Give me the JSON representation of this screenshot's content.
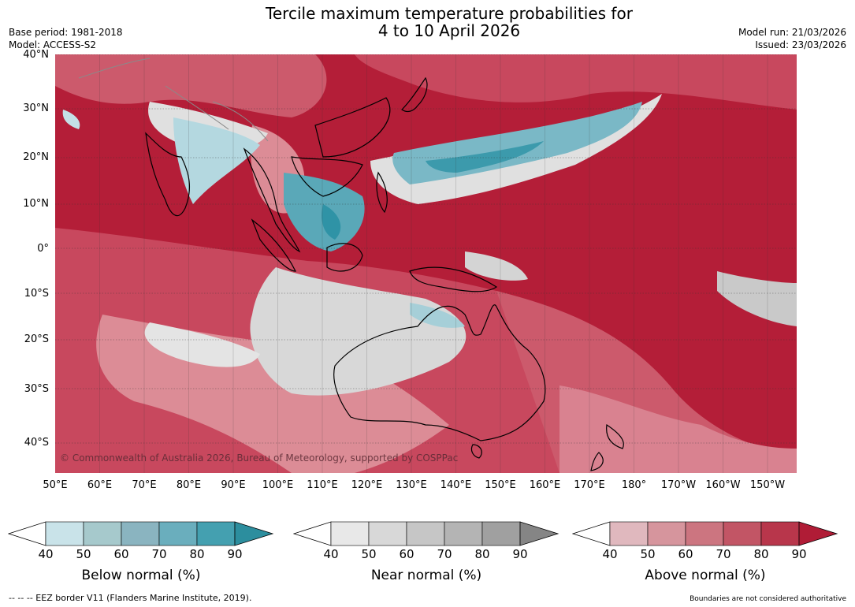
{
  "header": {
    "title_line1": "Tercile maximum temperature probabilities for",
    "title_line2": "4 to 10 April 2026",
    "base_period": "Base period: 1981-2018",
    "model": "Model: ACCESS-S2",
    "model_run": "Model run: 21/03/2026",
    "issued": "Issued: 23/03/2026"
  },
  "map": {
    "lat_labels": [
      "40°N",
      "30°N",
      "20°N",
      "10°N",
      "0°",
      "10°S",
      "20°S",
      "30°S",
      "40°S"
    ],
    "lon_labels": [
      "50°E",
      "60°E",
      "70°E",
      "80°E",
      "90°E",
      "100°E",
      "110°E",
      "120°E",
      "130°E",
      "140°E",
      "150°E",
      "160°E",
      "170°E",
      "180°",
      "170°W",
      "160°W",
      "150°W"
    ],
    "copyright": "© Commonwealth of Australia 2026, Bureau of Meteorology, supported by COSPPac",
    "colors": {
      "above_deep": "#b41e38",
      "above_mid": "#c8485e",
      "above_light": "#dc8c96",
      "near": "#d8d8d8",
      "below_light": "#c4e0e6",
      "below_mid": "#6aaebd",
      "below_deep": "#2f93a6",
      "land_outline": "#000000"
    }
  },
  "colorbars": [
    {
      "title": "Below normal (%)",
      "ticks": [
        "40",
        "50",
        "60",
        "70",
        "80",
        "90"
      ],
      "colors": [
        "#c9e3e9",
        "#a6c9cc",
        "#8ab4c0",
        "#6aaebd",
        "#44a0b0",
        "#2c8e9e"
      ]
    },
    {
      "title": "Near normal (%)",
      "ticks": [
        "40",
        "50",
        "60",
        "70",
        "80",
        "90"
      ],
      "colors": [
        "#e8e8e8",
        "#d8d8d8",
        "#c6c6c6",
        "#b4b4b4",
        "#a0a0a0",
        "#858585"
      ]
    },
    {
      "title": "Above normal (%)",
      "ticks": [
        "40",
        "50",
        "60",
        "70",
        "80",
        "90"
      ],
      "colors": [
        "#e0b8be",
        "#d6959d",
        "#cc7580",
        "#c25565",
        "#b8364b",
        "#b01c36"
      ]
    }
  ],
  "footer": {
    "eez_note": "-- -- -- EEZ border V11 (Flanders Marine Institute, 2019).",
    "boundaries_note": "Boundaries are not considered authoritative"
  }
}
